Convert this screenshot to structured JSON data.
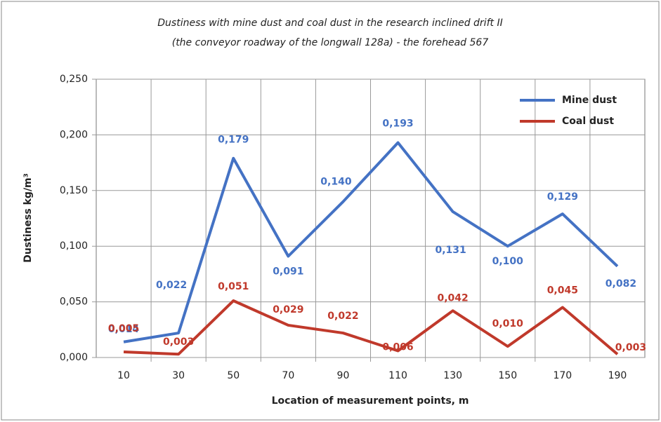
{
  "chart_data": {
    "type": "line",
    "title": [
      "Dustiness with mine dust and coal dust in the research inclined drift II",
      "(the conveyor roadway of the longwall 128a) - the forehead 567"
    ],
    "x_label": "Location of measurement points, m",
    "y_label": "Dustiness  kg/m³",
    "categories": [
      "10",
      "30",
      "50",
      "70",
      "90",
      "110",
      "130",
      "150",
      "170",
      "190"
    ],
    "series": [
      {
        "name": "Mine dust",
        "color": "#4472c4",
        "values": [
          0.014,
          0.022,
          0.179,
          0.091,
          0.14,
          0.193,
          0.131,
          0.1,
          0.129,
          0.082
        ],
        "value_labels": [
          "0,014",
          "0,022",
          "0,179",
          "0,091",
          "0,140",
          "0,193",
          "0,131",
          "0,100",
          "0,129",
          "0,082"
        ]
      },
      {
        "name": "Coal dust",
        "color": "#c0392b",
        "values": [
          0.005,
          0.003,
          0.051,
          0.029,
          0.022,
          0.006,
          0.042,
          0.01,
          0.045,
          0.003
        ],
        "value_labels": [
          "0,005",
          "0,003",
          "0,051",
          "0,029",
          "0,022",
          "0,006",
          "0,042",
          "0,010",
          "0,045",
          "0,003"
        ]
      }
    ],
    "ylim": [
      0,
      0.25
    ],
    "yticks": [
      {
        "value": 0,
        "label": "0,000"
      },
      {
        "value": 0.05,
        "label": "0,050"
      },
      {
        "value": 0.1,
        "label": "0,100"
      },
      {
        "value": 0.15,
        "label": "0,150"
      },
      {
        "value": 0.2,
        "label": "0,200"
      },
      {
        "value": 0.25,
        "label": "0,250"
      }
    ],
    "grid": true,
    "legend": "upper right"
  }
}
